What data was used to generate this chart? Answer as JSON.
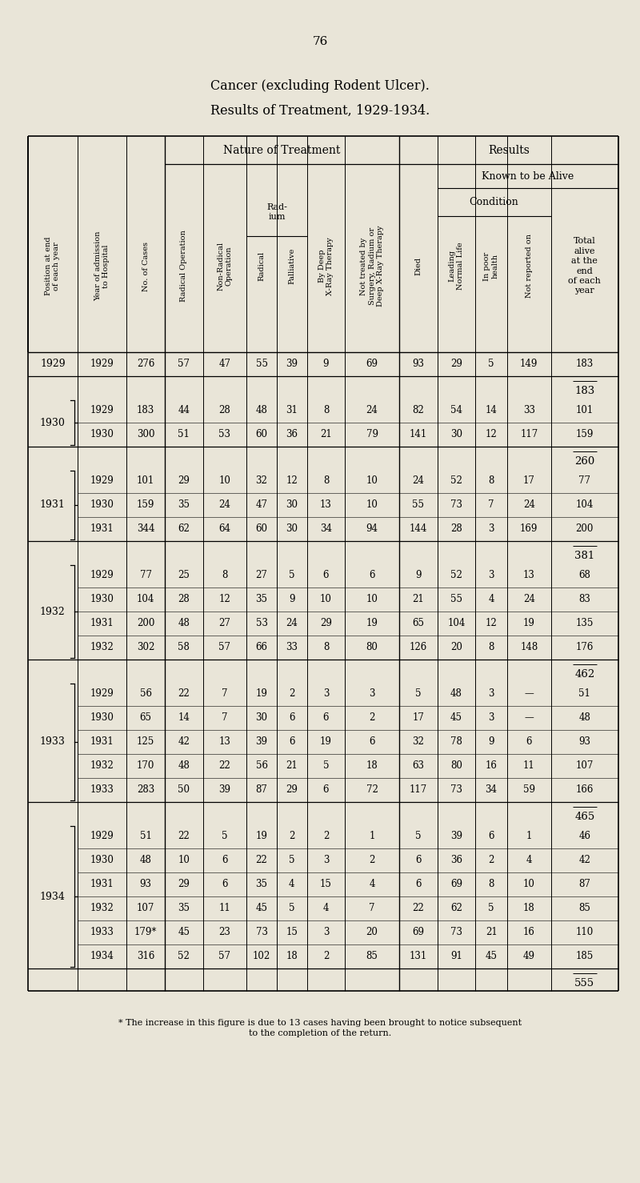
{
  "page_number": "76",
  "title1": "Cancer (excluding Rodent Ulcer).",
  "title2": "Results of Treatment, 1929-1934.",
  "bg_color": "#e9e5d8",
  "footnote": "* The increase in this figure is due to 13 cases having been brought to notice subsequent\nto the completion of the return.",
  "groups": [
    {
      "year": "1929",
      "rows": [
        [
          "1929",
          "276",
          "57",
          "47",
          "55",
          "39",
          "9",
          "69",
          "93",
          "29",
          "5",
          "149",
          "183"
        ]
      ],
      "subtotal": "183"
    },
    {
      "year": "1930",
      "rows": [
        [
          "1929",
          "183",
          "44",
          "28",
          "48",
          "31",
          "8",
          "24",
          "82",
          "54",
          "14",
          "33",
          "101"
        ],
        [
          "1930",
          "300",
          "51",
          "53",
          "60",
          "36",
          "21",
          "79",
          "141",
          "30",
          "12",
          "117",
          "159"
        ]
      ],
      "subtotal": "260"
    },
    {
      "year": "1931",
      "rows": [
        [
          "1929",
          "101",
          "29",
          "10",
          "32",
          "12",
          "8",
          "10",
          "24",
          "52",
          "8",
          "17",
          "77"
        ],
        [
          "1930",
          "159",
          "35",
          "24",
          "47",
          "30",
          "13",
          "10",
          "55",
          "73",
          "7",
          "24",
          "104"
        ],
        [
          "1931",
          "344",
          "62",
          "64",
          "60",
          "30",
          "34",
          "94",
          "144",
          "28",
          "3",
          "169",
          "200"
        ]
      ],
      "subtotal": "381"
    },
    {
      "year": "1932",
      "rows": [
        [
          "1929",
          "77",
          "25",
          "8",
          "27",
          "5",
          "6",
          "6",
          "9",
          "52",
          "3",
          "13",
          "68"
        ],
        [
          "1930",
          "104",
          "28",
          "12",
          "35",
          "9",
          "10",
          "10",
          "21",
          "55",
          "4",
          "24",
          "83"
        ],
        [
          "1931",
          "200",
          "48",
          "27",
          "53",
          "24",
          "29",
          "19",
          "65",
          "104",
          "12",
          "19",
          "135"
        ],
        [
          "1932",
          "302",
          "58",
          "57",
          "66",
          "33",
          "8",
          "80",
          "126",
          "20",
          "8",
          "148",
          "176"
        ]
      ],
      "subtotal": "462"
    },
    {
      "year": "1933",
      "rows": [
        [
          "1929",
          "56",
          "22",
          "7",
          "19",
          "2",
          "3",
          "3",
          "5",
          "48",
          "3",
          "—",
          "51"
        ],
        [
          "1930",
          "65",
          "14",
          "7",
          "30",
          "6",
          "6",
          "2",
          "17",
          "45",
          "3",
          "—",
          "48"
        ],
        [
          "1931",
          "125",
          "42",
          "13",
          "39",
          "6",
          "19",
          "6",
          "32",
          "78",
          "9",
          "6",
          "93"
        ],
        [
          "1932",
          "170",
          "48",
          "22",
          "56",
          "21",
          "5",
          "18",
          "63",
          "80",
          "16",
          "11",
          "107"
        ],
        [
          "1933",
          "283",
          "50",
          "39",
          "87",
          "29",
          "6",
          "72",
          "117",
          "73",
          "34",
          "59",
          "166"
        ]
      ],
      "subtotal": "465"
    },
    {
      "year": "1934",
      "rows": [
        [
          "1929",
          "51",
          "22",
          "5",
          "19",
          "2",
          "2",
          "1",
          "5",
          "39",
          "6",
          "1",
          "46"
        ],
        [
          "1930",
          "48",
          "10",
          "6",
          "22",
          "5",
          "3",
          "2",
          "6",
          "36",
          "2",
          "4",
          "42"
        ],
        [
          "1931",
          "93",
          "29",
          "6",
          "35",
          "4",
          "15",
          "4",
          "6",
          "69",
          "8",
          "10",
          "87"
        ],
        [
          "1932",
          "107",
          "35",
          "11",
          "45",
          "5",
          "4",
          "7",
          "22",
          "62",
          "5",
          "18",
          "85"
        ],
        [
          "1933",
          "179*",
          "45",
          "23",
          "73",
          "15",
          "3",
          "20",
          "69",
          "73",
          "21",
          "16",
          "110"
        ],
        [
          "1934",
          "316",
          "52",
          "57",
          "102",
          "18",
          "2",
          "85",
          "131",
          "91",
          "45",
          "49",
          "185"
        ]
      ],
      "subtotal": "555"
    }
  ]
}
